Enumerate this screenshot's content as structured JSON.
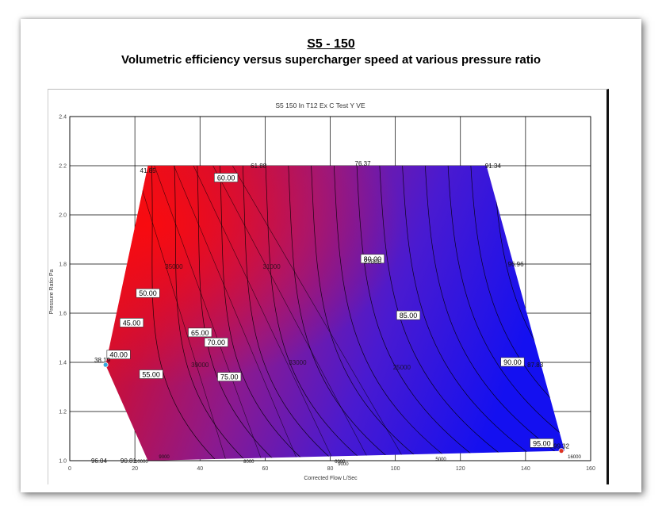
{
  "header": {
    "title": "S5 - 150",
    "subtitle": "Volumetric efficiency versus supercharger speed at various pressure ratio"
  },
  "chart_data": {
    "type": "heatmap",
    "title": "S5 150 In T12 Ex C Test Y VE",
    "xlabel": "Corrected Flow L/Sec",
    "ylabel": "Pressure Ratio Pa",
    "xlim": [
      0,
      160
    ],
    "ylim": [
      1.0,
      2.4
    ],
    "xticks": [
      "0",
      "20",
      "40",
      "60",
      "80",
      "100",
      "120",
      "140",
      "160"
    ],
    "yticks": [
      "1.0",
      "1.2",
      "1.4",
      "1.6",
      "1.8",
      "2.0",
      "2.2",
      "2.4"
    ],
    "color_scale": {
      "low": "#1a10e8",
      "high": "#e8101a"
    },
    "region_boundary": [
      [
        24,
        2.2
      ],
      [
        128,
        2.2
      ],
      [
        152,
        1.04
      ],
      [
        24,
        1.0
      ],
      [
        11,
        1.39
      ]
    ],
    "contour_labels": [
      {
        "text": "40.00",
        "x": 15,
        "y": 1.43
      },
      {
        "text": "45.00",
        "x": 19,
        "y": 1.56
      },
      {
        "text": "50.00",
        "x": 24,
        "y": 1.68
      },
      {
        "text": "55.00",
        "x": 25,
        "y": 1.35
      },
      {
        "text": "60.00",
        "x": 48,
        "y": 2.15
      },
      {
        "text": "65.00",
        "x": 40,
        "y": 1.52
      },
      {
        "text": "70.00",
        "x": 45,
        "y": 1.48
      },
      {
        "text": "75.00",
        "x": 49,
        "y": 1.34
      },
      {
        "text": "80.00",
        "x": 93,
        "y": 1.82
      },
      {
        "text": "85.00",
        "x": 104,
        "y": 1.59
      },
      {
        "text": "90.00",
        "x": 136,
        "y": 1.4
      },
      {
        "text": "95.00",
        "x": 145,
        "y": 1.07
      }
    ],
    "corner_values": [
      {
        "text": "38.19",
        "x": 10,
        "y": 1.41
      },
      {
        "text": "41.85",
        "x": 24,
        "y": 2.18
      },
      {
        "text": "61.88",
        "x": 58,
        "y": 2.2
      },
      {
        "text": "76.37",
        "x": 90,
        "y": 2.21
      },
      {
        "text": "91.34",
        "x": 130,
        "y": 2.2
      },
      {
        "text": "96.96",
        "x": 137,
        "y": 1.8
      },
      {
        "text": "87.83",
        "x": 143,
        "y": 1.39
      },
      {
        "text": "99.32",
        "x": 151,
        "y": 1.06
      },
      {
        "text": "96.04",
        "x": 9,
        "y": 1.0
      },
      {
        "text": "90.81",
        "x": 18,
        "y": 1.0
      }
    ],
    "speed_labels": [
      {
        "text": "35000",
        "x": 32,
        "y": 1.79
      },
      {
        "text": "31000",
        "x": 62,
        "y": 1.79
      },
      {
        "text": "27000",
        "x": 93,
        "y": 1.81
      },
      {
        "text": "39000",
        "x": 40,
        "y": 1.39
      },
      {
        "text": "33000",
        "x": 70,
        "y": 1.4
      },
      {
        "text": "25000",
        "x": 102,
        "y": 1.38
      }
    ],
    "bottom_labels": [
      {
        "text": "9000",
        "x": 29,
        "y": 1.02
      },
      {
        "text": "10000",
        "x": 22,
        "y": 1.0
      },
      {
        "text": "8000",
        "x": 55,
        "y": 1.0
      },
      {
        "text": "6000",
        "x": 83,
        "y": 1.0
      },
      {
        "text": "9000",
        "x": 84,
        "y": 0.99
      },
      {
        "text": "5000",
        "x": 114,
        "y": 1.01
      },
      {
        "text": "16000",
        "x": 155,
        "y": 1.02
      }
    ],
    "marker_points": [
      {
        "name": "min",
        "x": 11,
        "y": 1.39,
        "color": "#33aadd"
      },
      {
        "name": "max",
        "x": 151,
        "y": 1.04,
        "color": "#dd3322"
      }
    ],
    "grid": true
  }
}
